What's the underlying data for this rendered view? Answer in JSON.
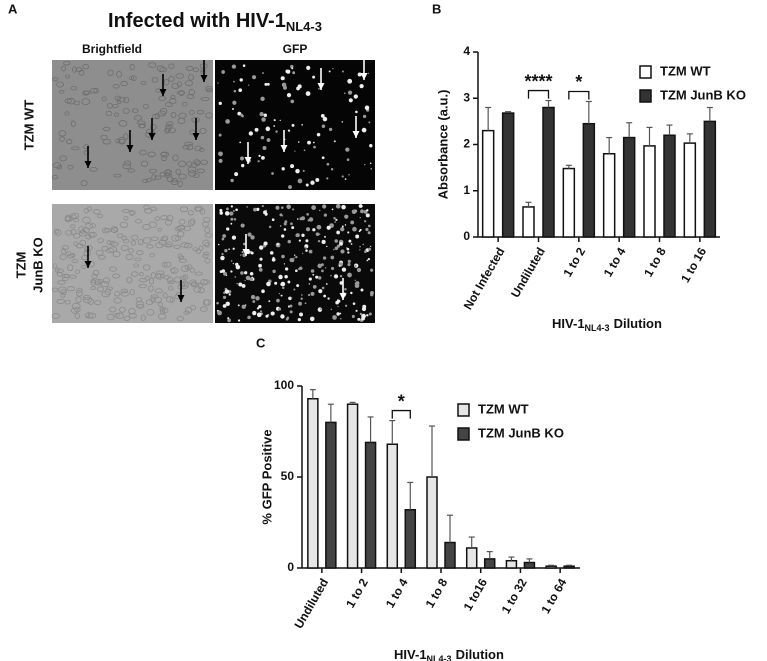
{
  "panel_a": {
    "letter": "A",
    "title": "Infected with HIV-1",
    "title_subscript": "NL4-3",
    "columns": [
      "Brightfield",
      "GFP"
    ],
    "rows": [
      {
        "label_lines": [
          "TZM WT"
        ]
      },
      {
        "label_lines": [
          "TZM",
          "JunB KO"
        ]
      }
    ]
  },
  "chart_data": [
    {
      "type": "bar",
      "letter": "B",
      "ylabel": "Absorbance (a.u.)",
      "xlabel": "HIV-1",
      "xlabel_subscript": "NL4-3",
      "xlabel_suffix": "Dilution",
      "categories": [
        "Not Infected",
        "Undiluted",
        "1 to 2",
        "1 to 4",
        "1 to 8",
        "1 to 16"
      ],
      "series": [
        {
          "name": "TZM WT",
          "color": "#ffffff",
          "values": [
            2.3,
            0.65,
            1.48,
            1.8,
            1.97,
            2.03
          ],
          "errors": [
            0.5,
            0.1,
            0.07,
            0.35,
            0.4,
            0.2
          ]
        },
        {
          "name": "TZM JunB KO",
          "color": "#333333",
          "values": [
            2.68,
            2.8,
            2.45,
            2.15,
            2.2,
            2.5
          ],
          "errors": [
            0.03,
            0.15,
            0.48,
            0.32,
            0.22,
            0.3
          ]
        }
      ],
      "annotations": [
        {
          "text": "****",
          "category": "Undiluted"
        },
        {
          "text": "*",
          "category": "1 to 2"
        }
      ],
      "ylim": [
        0,
        4
      ],
      "yticks": [
        0,
        1,
        2,
        3,
        4
      ],
      "legend": "upper right"
    },
    {
      "type": "bar",
      "letter": "C",
      "ylabel": "% GFP Positive",
      "xlabel": "HIV-1",
      "xlabel_subscript": "NL4-3",
      "xlabel_suffix": "Dilution",
      "categories": [
        "Undiluted",
        "1 to 2",
        "1 to 4",
        "1 to 8",
        "1 to16",
        "1 to 32",
        "1 to 64"
      ],
      "series": [
        {
          "name": "TZM WT",
          "color": "#e6e6e6",
          "values": [
            93,
            90,
            68,
            50,
            11,
            4,
            1
          ],
          "errors": [
            5,
            1,
            13,
            28,
            6,
            2,
            0.5
          ]
        },
        {
          "name": "TZM JunB KO",
          "color": "#444444",
          "values": [
            80,
            69,
            32,
            14,
            5,
            3,
            1
          ],
          "errors": [
            10,
            14,
            15,
            15,
            4,
            2,
            0.5
          ]
        }
      ],
      "annotations": [
        {
          "text": "*",
          "category": "1 to 4"
        }
      ],
      "ylim": [
        0,
        100
      ],
      "yticks": [
        0,
        50,
        100
      ],
      "legend": "upper right"
    }
  ]
}
